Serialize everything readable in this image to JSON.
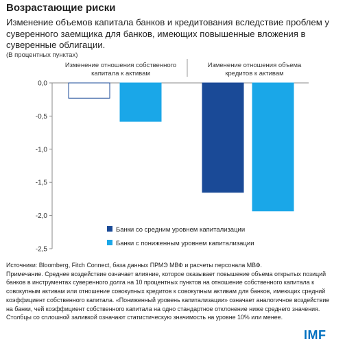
{
  "header": {
    "title": "Возрастающие риски",
    "subtitle": "Изменение объемов капитала банков и кредитования вследствие проблем у суверенного заемщика для банков, имеющих повышенные вложения в суверенные облигации.",
    "units": "(В процентных пунктах)"
  },
  "chart_data": {
    "type": "bar",
    "categories": [
      [
        "Изменение отношения собственного",
        "капитала к активам"
      ],
      [
        "Изменение отношения объема",
        "кредитов к активам"
      ]
    ],
    "series": [
      {
        "name": "Банки со средним уровнем капитализации",
        "values": [
          -0.23,
          -1.65
        ],
        "colors": [
          "#ffffff",
          "#1a4a97"
        ],
        "stroke": "#1a4a97"
      },
      {
        "name": "Банки с пониженным уровнем капитализации",
        "values": [
          -0.58,
          -1.93
        ],
        "colors": [
          "#1aa7e8",
          "#1aa7e8"
        ],
        "stroke": "#1aa7e8"
      }
    ],
    "y_ticks": [
      "0,0",
      "-0,5",
      "-1,0",
      "-1,5",
      "-2,0",
      "-2,5"
    ],
    "y_tick_values": [
      0,
      -0.5,
      -1.0,
      -1.5,
      -2.0,
      -2.5
    ],
    "ylim": [
      -2.5,
      0
    ],
    "legend_position": "bottom-right",
    "grid": false
  },
  "notes": {
    "sources": "Источники: Bloomberg, Fitch Connect, база данных ПРМЭ МВФ и расчеты персонала МВФ.",
    "note": "Примечание. Среднее воздействие означает влияние, которое оказывает повышение объема открытых позиций банков в инструментах суверенного долга на 10 процентных пунктов на отношение собственного капитала к совокупным активам или отношение совокупных кредитов к совокупным активам для банков, имеющих средний коэффициент собственного капитала. «Пониженный уровень капитализации» означает аналогичное воздействие на банки, чей коэффициент собственного капитала на одно стандартное отклонение ниже среднего значения. Столбцы со сплошной заливкой означают статистическую значимость на уровне 10% или менее."
  },
  "logo": {
    "text": "IMF",
    "color": "#0070c0"
  }
}
